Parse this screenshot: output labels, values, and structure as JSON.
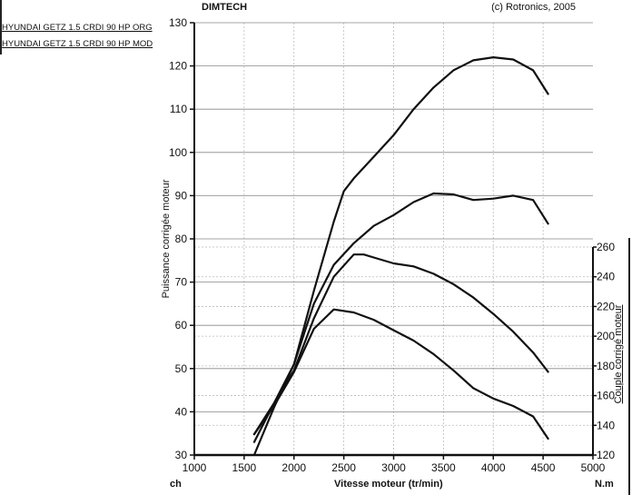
{
  "chart_data": {
    "type": "line",
    "title": "DIMTECH",
    "credit": "(c) Rotronics, 2005",
    "xlabel": "Vitesse moteur (tr/min)",
    "ylabel": "Puissance corrigée moteur",
    "ylabel_right": "Couple corrigé moteur",
    "y_unit": "ch",
    "y_right_unit": "N.m",
    "xlim": [
      1000,
      5000
    ],
    "ylim": [
      30,
      130
    ],
    "ylim_right": [
      120,
      260
    ],
    "xticks": [
      1000,
      1500,
      2000,
      2500,
      3000,
      3500,
      4000,
      4500,
      5000
    ],
    "yticks": [
      30,
      40,
      50,
      60,
      70,
      80,
      90,
      100,
      110,
      120,
      130
    ],
    "yticks_right": [
      120,
      140,
      160,
      180,
      200,
      220,
      240,
      260
    ],
    "grid": true,
    "legend": [
      "HYUNDAI GETZ 1.5 CRDI 90 HP ORG",
      "HYUNDAI GETZ 1.5 CRDI 90 HP MOD"
    ],
    "legend_position": "top-left",
    "line_color": "#111111",
    "series": [
      {
        "name": "HYUNDAI GETZ 1.5 CRDI 90 HP MOD",
        "axis": "left",
        "x": [
          1600,
          1800,
          2000,
          2200,
          2400,
          2500,
          2600,
          2800,
          3000,
          3200,
          3400,
          3600,
          3800,
          4000,
          4200,
          4400,
          4550
        ],
        "y": [
          33,
          42,
          51,
          68,
          84,
          91,
          94,
          99,
          104,
          110,
          115,
          119,
          121.3,
          122,
          121.5,
          119,
          113.5
        ]
      },
      {
        "name": "HYUNDAI GETZ 1.5 CRDI 90 HP ORG",
        "axis": "left",
        "x": [
          1600,
          1800,
          2000,
          2200,
          2400,
          2600,
          2800,
          3000,
          3200,
          3400,
          3600,
          3800,
          4000,
          4200,
          4400,
          4550
        ],
        "y": [
          30,
          41,
          51,
          65,
          74,
          79,
          83,
          85.5,
          88.5,
          90.5,
          90.3,
          89,
          89.3,
          90,
          89,
          83.5
        ]
      },
      {
        "name": "HYUNDAI GETZ 1.5 CRDI 90 HP MOD",
        "axis": "right",
        "x": [
          1600,
          1800,
          2000,
          2200,
          2400,
          2600,
          2700,
          2800,
          3000,
          3200,
          3400,
          3600,
          3800,
          4000,
          4200,
          4400,
          4550
        ],
        "y": [
          134,
          155,
          177,
          212,
          240,
          255,
          255,
          253,
          249,
          247,
          242,
          235,
          226,
          215,
          203,
          189,
          176
        ]
      },
      {
        "name": "HYUNDAI GETZ 1.5 CRDI 90 HP ORG",
        "axis": "right",
        "x": [
          1600,
          1800,
          2000,
          2200,
          2400,
          2600,
          2800,
          3000,
          3200,
          3400,
          3600,
          3800,
          4000,
          4200,
          4400,
          4550
        ],
        "y": [
          134,
          153,
          176,
          205,
          218,
          216,
          211,
          204,
          197,
          188,
          177,
          165,
          158,
          153,
          146,
          131
        ]
      }
    ]
  }
}
